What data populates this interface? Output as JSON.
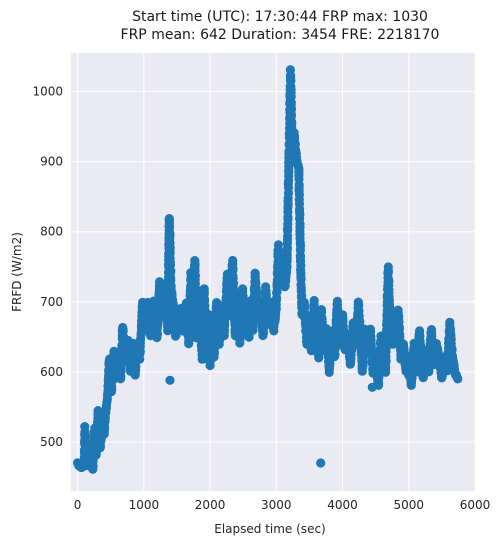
{
  "chart_data": {
    "type": "scatter",
    "title_line1": "Start time (UTC): 17:30:44 FRP max: 1030",
    "title_line2": "FRP mean: 642 Duration: 3454 FRE: 2218170",
    "xlabel": "Elapsed time (sec)",
    "ylabel": "FRFD (W/m2)",
    "xlim": [
      -100,
      6000
    ],
    "ylim": [
      430,
      1055
    ],
    "xticks": [
      0,
      1000,
      2000,
      3000,
      4000,
      5000,
      6000
    ],
    "yticks": [
      500,
      600,
      700,
      800,
      900,
      1000
    ],
    "grid": true,
    "background": "#eaeaf2",
    "marker_color": "#1f77b4",
    "segments": [
      [
        0,
        470
      ],
      [
        60,
        462
      ],
      [
        100,
        470
      ],
      [
        110,
        520
      ],
      [
        150,
        468
      ],
      [
        200,
        475
      ],
      [
        230,
        462
      ],
      [
        260,
        520
      ],
      [
        280,
        480
      ],
      [
        310,
        545
      ],
      [
        340,
        490
      ],
      [
        380,
        530
      ],
      [
        400,
        510
      ],
      [
        420,
        540
      ],
      [
        450,
        560
      ],
      [
        480,
        620
      ],
      [
        510,
        570
      ],
      [
        550,
        630
      ],
      [
        580,
        590
      ],
      [
        620,
        610
      ],
      [
        650,
        590
      ],
      [
        680,
        665
      ],
      [
        720,
        620
      ],
      [
        760,
        645
      ],
      [
        800,
        600
      ],
      [
        840,
        640
      ],
      [
        870,
        595
      ],
      [
        900,
        640
      ],
      [
        940,
        620
      ],
      [
        980,
        700
      ],
      [
        1020,
        660
      ],
      [
        1060,
        700
      ],
      [
        1100,
        650
      ],
      [
        1150,
        700
      ],
      [
        1200,
        650
      ],
      [
        1240,
        730
      ],
      [
        1280,
        680
      ],
      [
        1320,
        720
      ],
      [
        1360,
        660
      ],
      [
        1385,
        820
      ],
      [
        1410,
        720
      ],
      [
        1440,
        700
      ],
      [
        1480,
        650
      ],
      [
        1520,
        680
      ],
      [
        1560,
        690
      ],
      [
        1600,
        660
      ],
      [
        1640,
        700
      ],
      [
        1680,
        640
      ],
      [
        1710,
        740
      ],
      [
        1740,
        700
      ],
      [
        1770,
        760
      ],
      [
        1800,
        650
      ],
      [
        1840,
        700
      ],
      [
        1880,
        620
      ],
      [
        1910,
        720
      ],
      [
        1940,
        650
      ],
      [
        1970,
        680
      ],
      [
        2000,
        610
      ],
      [
        2030,
        650
      ],
      [
        2060,
        620
      ],
      [
        2100,
        700
      ],
      [
        2140,
        640
      ],
      [
        2180,
        680
      ],
      [
        2210,
        650
      ],
      [
        2260,
        740
      ],
      [
        2300,
        680
      ],
      [
        2340,
        760
      ],
      [
        2380,
        650
      ],
      [
        2420,
        700
      ],
      [
        2450,
        640
      ],
      [
        2490,
        720
      ],
      [
        2520,
        660
      ],
      [
        2560,
        680
      ],
      [
        2590,
        650
      ],
      [
        2620,
        700
      ],
      [
        2650,
        660
      ],
      [
        2680,
        740
      ],
      [
        2720,
        680
      ],
      [
        2760,
        700
      ],
      [
        2800,
        650
      ],
      [
        2840,
        720
      ],
      [
        2880,
        670
      ],
      [
        2920,
        700
      ],
      [
        2960,
        660
      ],
      [
        3000,
        690
      ],
      [
        3030,
        780
      ],
      [
        3060,
        740
      ],
      [
        3100,
        760
      ],
      [
        3130,
        720
      ],
      [
        3160,
        750
      ],
      [
        3190,
        900
      ],
      [
        3215,
        1030
      ],
      [
        3240,
        920
      ],
      [
        3270,
        940
      ],
      [
        3310,
        900
      ],
      [
        3340,
        890
      ],
      [
        3370,
        740
      ],
      [
        3390,
        680
      ],
      [
        3420,
        700
      ],
      [
        3460,
        640
      ],
      [
        3500,
        680
      ],
      [
        3530,
        630
      ],
      [
        3570,
        700
      ],
      [
        3600,
        660
      ],
      [
        3640,
        620
      ],
      [
        3680,
        690
      ],
      [
        3720,
        630
      ],
      [
        3760,
        660
      ],
      [
        3800,
        600
      ],
      [
        3840,
        660
      ],
      [
        3880,
        620
      ],
      [
        3920,
        700
      ],
      [
        3960,
        640
      ],
      [
        4000,
        680
      ],
      [
        4040,
        630
      ],
      [
        4080,
        650
      ],
      [
        4120,
        610
      ],
      [
        4160,
        670
      ],
      [
        4200,
        640
      ],
      [
        4240,
        700
      ],
      [
        4270,
        650
      ],
      [
        4300,
        600
      ],
      [
        4340,
        660
      ],
      [
        4380,
        630
      ],
      [
        4420,
        660
      ],
      [
        4460,
        600
      ],
      [
        4500,
        620
      ],
      [
        4540,
        580
      ],
      [
        4580,
        650
      ],
      [
        4620,
        620
      ],
      [
        4650,
        600
      ],
      [
        4690,
        750
      ],
      [
        4720,
        660
      ],
      [
        4760,
        640
      ],
      [
        4800,
        660
      ],
      [
        4840,
        690
      ],
      [
        4880,
        620
      ],
      [
        4920,
        640
      ],
      [
        4960,
        600
      ],
      [
        5000,
        620
      ],
      [
        5040,
        580
      ],
      [
        5080,
        640
      ],
      [
        5120,
        600
      ],
      [
        5160,
        660
      ],
      [
        5190,
        620
      ],
      [
        5220,
        590
      ],
      [
        5260,
        630
      ],
      [
        5300,
        600
      ],
      [
        5340,
        660
      ],
      [
        5380,
        610
      ],
      [
        5420,
        640
      ],
      [
        5460,
        620
      ],
      [
        5500,
        590
      ],
      [
        5540,
        620
      ],
      [
        5580,
        600
      ],
      [
        5620,
        670
      ],
      [
        5660,
        620
      ],
      [
        5700,
        600
      ],
      [
        5740,
        590
      ]
    ],
    "outliers": [
      [
        1395,
        588
      ],
      [
        3670,
        470
      ],
      [
        4450,
        578
      ],
      [
        4600,
        628
      ],
      [
        5000,
        595
      ]
    ]
  }
}
